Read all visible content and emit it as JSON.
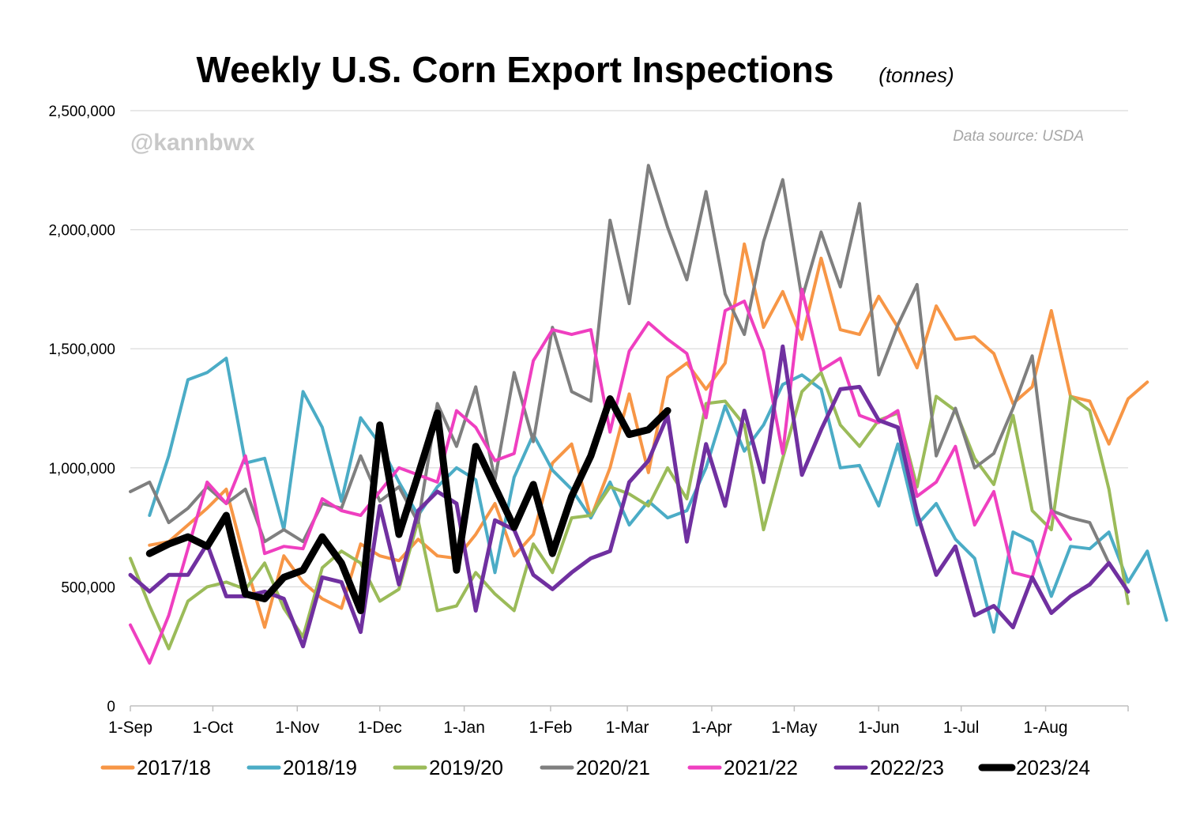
{
  "chart_data": {
    "type": "line",
    "title": "Weekly U.S. Corn Export Inspections",
    "title_unit": "(tonnes)",
    "watermark": "@kannbwx",
    "source": "Data source: USDA",
    "xlabel": "",
    "ylabel": "",
    "ylim": [
      0,
      2500000
    ],
    "y_ticks": [
      {
        "value": 0,
        "label": "0"
      },
      {
        "value": 500000,
        "label": "500,000"
      },
      {
        "value": 1000000,
        "label": "1,000,000"
      },
      {
        "value": 1500000,
        "label": "1,500,000"
      },
      {
        "value": 2000000,
        "label": "2,000,000"
      },
      {
        "value": 2500000,
        "label": "2,500,000"
      }
    ],
    "x_weeks": 52,
    "x_ticks": [
      {
        "week": 0,
        "label": "1-Sep"
      },
      {
        "week": 4.3,
        "label": "1-Oct"
      },
      {
        "week": 8.7,
        "label": "1-Nov"
      },
      {
        "week": 13,
        "label": "1-Dec"
      },
      {
        "week": 17.4,
        "label": "1-Jan"
      },
      {
        "week": 21.9,
        "label": "1-Feb"
      },
      {
        "week": 25.9,
        "label": "1-Mar"
      },
      {
        "week": 30.3,
        "label": "1-Apr"
      },
      {
        "week": 34.6,
        "label": "1-May"
      },
      {
        "week": 39,
        "label": "1-Jun"
      },
      {
        "week": 43.3,
        "label": "1-Jul"
      },
      {
        "week": 47.7,
        "label": "1-Aug"
      }
    ],
    "legend_position": "bottom",
    "series": [
      {
        "name": "2017/18",
        "color": "#f79646",
        "width": 4,
        "start": 1,
        "values": [
          675000,
          690000,
          760000,
          830000,
          910000,
          600000,
          330000,
          630000,
          520000,
          450000,
          410000,
          680000,
          630000,
          610000,
          700000,
          630000,
          620000,
          720000,
          850000,
          630000,
          720000,
          1020000,
          1100000,
          790000,
          1000000,
          1310000,
          980000,
          1380000,
          1440000,
          1330000,
          1440000,
          1940000,
          1590000,
          1740000,
          1540000,
          1880000,
          1580000,
          1560000,
          1720000,
          1590000,
          1420000,
          1680000,
          1540000,
          1550000,
          1480000,
          1270000,
          1340000,
          1660000,
          1300000,
          1280000,
          1100000,
          1290000,
          1360000
        ]
      },
      {
        "name": "2018/19",
        "color": "#4bacc6",
        "width": 4,
        "start": 1,
        "values": [
          800000,
          1050000,
          1370000,
          1400000,
          1460000,
          1020000,
          1040000,
          740000,
          1320000,
          1170000,
          860000,
          1210000,
          1100000,
          940000,
          800000,
          920000,
          1000000,
          950000,
          560000,
          960000,
          1140000,
          990000,
          910000,
          790000,
          940000,
          760000,
          860000,
          790000,
          820000,
          1000000,
          1260000,
          1070000,
          1180000,
          1350000,
          1390000,
          1330000,
          1000000,
          1010000,
          840000,
          1100000,
          760000,
          850000,
          700000,
          620000,
          310000,
          730000,
          690000,
          460000,
          670000,
          660000,
          730000,
          520000,
          650000,
          360000
        ]
      },
      {
        "name": "2019/20",
        "color": "#9bbb59",
        "width": 4,
        "start": 0,
        "values": [
          620000,
          420000,
          240000,
          440000,
          500000,
          520000,
          490000,
          600000,
          410000,
          290000,
          580000,
          650000,
          600000,
          440000,
          490000,
          780000,
          400000,
          420000,
          560000,
          470000,
          400000,
          680000,
          560000,
          790000,
          800000,
          920000,
          890000,
          840000,
          1000000,
          870000,
          1270000,
          1280000,
          1180000,
          740000,
          1040000,
          1320000,
          1400000,
          1180000,
          1090000,
          1200000,
          1230000,
          920000,
          1300000,
          1240000,
          1040000,
          930000,
          1220000,
          820000,
          740000,
          1300000,
          1240000,
          910000,
          430000
        ]
      },
      {
        "name": "2020/21",
        "color": "#7f7f7f",
        "width": 4,
        "start": 0,
        "values": [
          900000,
          940000,
          770000,
          830000,
          920000,
          850000,
          910000,
          690000,
          740000,
          690000,
          850000,
          830000,
          1050000,
          860000,
          920000,
          770000,
          1270000,
          1090000,
          1340000,
          950000,
          1400000,
          1110000,
          1590000,
          1320000,
          1280000,
          2040000,
          1690000,
          2270000,
          2010000,
          1790000,
          2160000,
          1730000,
          1560000,
          1950000,
          2210000,
          1710000,
          1990000,
          1760000,
          2110000,
          1390000,
          1600000,
          1770000,
          1050000,
          1250000,
          1000000,
          1060000,
          1250000,
          1470000,
          820000,
          790000,
          770000,
          600000
        ]
      },
      {
        "name": "2021/22",
        "color": "#ef3fc0",
        "width": 4,
        "start": 0,
        "values": [
          340000,
          180000,
          380000,
          660000,
          940000,
          850000,
          1050000,
          640000,
          670000,
          660000,
          870000,
          820000,
          800000,
          900000,
          1000000,
          970000,
          940000,
          1240000,
          1170000,
          1030000,
          1060000,
          1450000,
          1580000,
          1560000,
          1580000,
          1150000,
          1490000,
          1610000,
          1540000,
          1480000,
          1210000,
          1660000,
          1700000,
          1490000,
          1060000,
          1750000,
          1410000,
          1460000,
          1220000,
          1190000,
          1240000,
          880000,
          940000,
          1090000,
          760000,
          900000,
          560000,
          540000,
          820000,
          700000
        ]
      },
      {
        "name": "2022/23",
        "color": "#7030a0",
        "width": 5,
        "start": 0,
        "values": [
          550000,
          480000,
          550000,
          550000,
          680000,
          460000,
          460000,
          480000,
          450000,
          250000,
          540000,
          520000,
          310000,
          840000,
          510000,
          820000,
          900000,
          850000,
          400000,
          780000,
          740000,
          550000,
          490000,
          560000,
          620000,
          650000,
          940000,
          1030000,
          1220000,
          690000,
          1100000,
          840000,
          1240000,
          940000,
          1510000,
          970000,
          1160000,
          1330000,
          1340000,
          1200000,
          1170000,
          810000,
          550000,
          670000,
          380000,
          420000,
          330000,
          540000,
          390000,
          460000,
          510000,
          600000,
          480000
        ]
      },
      {
        "name": "2023/24",
        "color": "#000000",
        "width": 9,
        "start": 1,
        "values": [
          640000,
          680000,
          710000,
          670000,
          800000,
          470000,
          450000,
          540000,
          570000,
          710000,
          600000,
          400000,
          1180000,
          720000,
          970000,
          1230000,
          570000,
          1090000,
          920000,
          750000,
          930000,
          640000,
          880000,
          1050000,
          1290000,
          1140000,
          1160000,
          1240000
        ]
      }
    ]
  }
}
